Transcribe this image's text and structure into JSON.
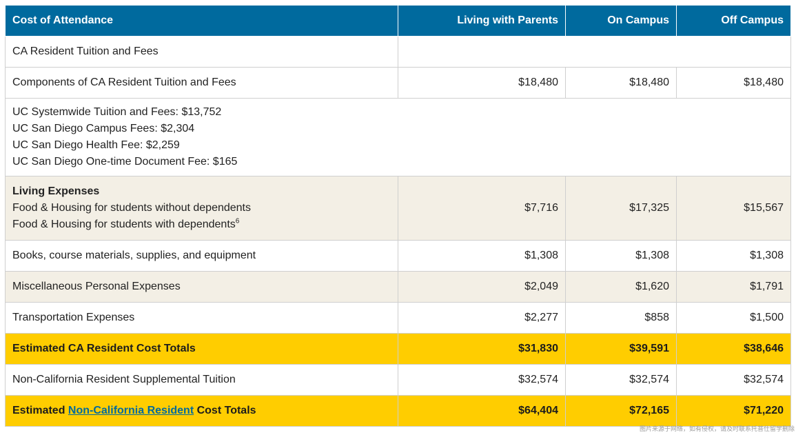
{
  "header": {
    "label": "Cost of Attendance",
    "columns": [
      "Living with Parents",
      "On Campus",
      "Off Campus"
    ]
  },
  "rows": {
    "tuition_header": {
      "label": "CA Resident Tuition and Fees"
    },
    "tuition_components": {
      "label": "Components of CA Resident Tuition and Fees",
      "values": [
        "$18,480",
        "$18,480",
        "$18,480"
      ]
    },
    "tuition_items": [
      "UC Systemwide Tuition and Fees: $13,752",
      "UC San Diego Campus Fees: $2,304",
      "UC San Diego Health Fee: $2,259",
      "UC San Diego One-time Document Fee: $165"
    ],
    "living": {
      "title": "Living Expenses",
      "line1": "Food & Housing for students without dependents",
      "line2": "Food & Housing for students with dependents",
      "footnote": "6",
      "values": [
        "$7,716",
        "$17,325",
        "$15,567"
      ]
    },
    "books": {
      "label": "Books, course materials, supplies, and equipment",
      "values": [
        "$1,308",
        "$1,308",
        "$1,308"
      ]
    },
    "misc": {
      "label": "Miscellaneous Personal Expenses",
      "values": [
        "$2,049",
        "$1,620",
        "$1,791"
      ]
    },
    "transport": {
      "label": "Transportation Expenses",
      "values": [
        "$2,277",
        "$858",
        "$1,500"
      ]
    },
    "ca_total": {
      "label": "Estimated CA Resident Cost Totals",
      "values": [
        "$31,830",
        "$39,591",
        "$38,646"
      ]
    },
    "nonres_supp": {
      "label": "Non-California Resident Supplemental Tuition",
      "values": [
        "$32,574",
        "$32,574",
        "$32,574"
      ]
    },
    "nonres_total": {
      "prefix": "Estimated ",
      "link": "Non-California Resident",
      "suffix": " Cost Totals",
      "values": [
        "$64,404",
        "$72,165",
        "$71,220"
      ]
    }
  },
  "watermark": "图片来源于网络，如有侵权，请及时联系托普仕留学删除",
  "colors": {
    "header": "#006a9e",
    "shade": "#f3efe5",
    "total": "#ffcd00",
    "link": "#006a9e"
  }
}
